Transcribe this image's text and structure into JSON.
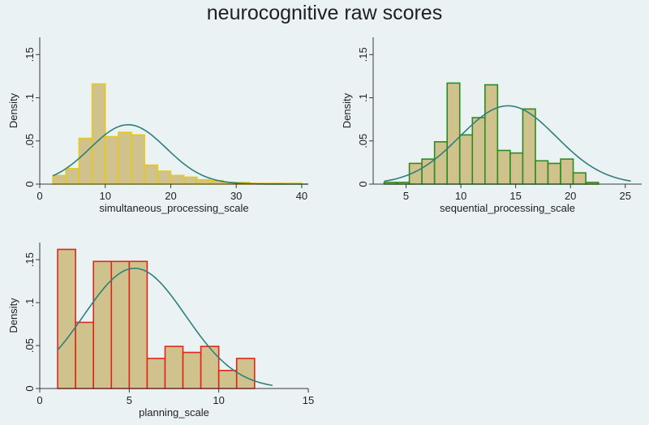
{
  "title": "neurocognitive raw scores",
  "chart_data": [
    {
      "type": "bar",
      "subtype": "histogram-with-normal-density-curve",
      "xlabel": "simultaneous_processing_scale",
      "ylabel": "Density",
      "xlim": [
        0,
        41
      ],
      "ylim": [
        0,
        0.17
      ],
      "xticks": [
        0,
        10,
        20,
        30,
        40
      ],
      "yticks": [
        0,
        0.05,
        0.1,
        0.15
      ],
      "xtick_labels": [
        "0",
        "10",
        "20",
        "30",
        "40"
      ],
      "ytick_labels": [
        "0",
        ".05",
        ".1",
        ".15"
      ],
      "bin_width": 2,
      "bins": [
        {
          "x0": 2,
          "x1": 4,
          "density": 0.01
        },
        {
          "x0": 4,
          "x1": 6,
          "density": 0.018
        },
        {
          "x0": 6,
          "x1": 8,
          "density": 0.053
        },
        {
          "x0": 8,
          "x1": 10,
          "density": 0.116
        },
        {
          "x0": 10,
          "x1": 12,
          "density": 0.055
        },
        {
          "x0": 12,
          "x1": 14,
          "density": 0.06
        },
        {
          "x0": 14,
          "x1": 16,
          "density": 0.057
        },
        {
          "x0": 16,
          "x1": 18,
          "density": 0.022
        },
        {
          "x0": 18,
          "x1": 20,
          "density": 0.015
        },
        {
          "x0": 20,
          "x1": 22,
          "density": 0.01
        },
        {
          "x0": 22,
          "x1": 24,
          "density": 0.008
        },
        {
          "x0": 24,
          "x1": 26,
          "density": 0.005
        },
        {
          "x0": 26,
          "x1": 28,
          "density": 0.004
        },
        {
          "x0": 28,
          "x1": 30,
          "density": 0.002
        },
        {
          "x0": 30,
          "x1": 32,
          "density": 0.002
        },
        {
          "x0": 32,
          "x1": 34,
          "density": 0.001
        },
        {
          "x0": 34,
          "x1": 36,
          "density": 0.001
        },
        {
          "x0": 36,
          "x1": 38,
          "density": 0.001
        },
        {
          "x0": 38,
          "x1": 40,
          "density": 0.001
        }
      ],
      "normal_curve": {
        "mean": 13.5,
        "sd": 5.8,
        "range": [
          2,
          41
        ]
      },
      "colors": {
        "bar_fill": "#cfc28c",
        "bar_edge": "#e8c81c",
        "curve": "#2f7f7a"
      }
    },
    {
      "type": "bar",
      "subtype": "histogram-with-normal-density-curve",
      "xlabel": "sequential_processing_scale",
      "ylabel": "Density",
      "xlim": [
        2,
        26.5
      ],
      "ylim": [
        0,
        0.17
      ],
      "xticks": [
        5,
        10,
        15,
        20,
        25
      ],
      "yticks": [
        0,
        0.05,
        0.1,
        0.15
      ],
      "xtick_labels": [
        "5",
        "10",
        "15",
        "20",
        "25"
      ],
      "ytick_labels": [
        "0",
        ".05",
        ".1",
        ".15"
      ],
      "bin_width": 1.15,
      "bins": [
        {
          "x0": 3.0,
          "x1": 4.15,
          "density": 0.002
        },
        {
          "x0": 4.15,
          "x1": 5.3,
          "density": 0.002
        },
        {
          "x0": 5.3,
          "x1": 6.45,
          "density": 0.024
        },
        {
          "x0": 6.45,
          "x1": 7.6,
          "density": 0.029
        },
        {
          "x0": 7.6,
          "x1": 8.75,
          "density": 0.049
        },
        {
          "x0": 8.75,
          "x1": 9.9,
          "density": 0.117
        },
        {
          "x0": 9.9,
          "x1": 11.05,
          "density": 0.057
        },
        {
          "x0": 11.05,
          "x1": 12.2,
          "density": 0.077
        },
        {
          "x0": 12.2,
          "x1": 13.35,
          "density": 0.115
        },
        {
          "x0": 13.35,
          "x1": 14.5,
          "density": 0.039
        },
        {
          "x0": 14.5,
          "x1": 15.65,
          "density": 0.036
        },
        {
          "x0": 15.65,
          "x1": 16.8,
          "density": 0.087
        },
        {
          "x0": 16.8,
          "x1": 17.95,
          "density": 0.027
        },
        {
          "x0": 17.95,
          "x1": 19.1,
          "density": 0.024
        },
        {
          "x0": 19.1,
          "x1": 20.25,
          "density": 0.029
        },
        {
          "x0": 20.25,
          "x1": 21.4,
          "density": 0.013
        },
        {
          "x0": 21.4,
          "x1": 22.55,
          "density": 0.002
        }
      ],
      "normal_curve": {
        "mean": 14.3,
        "sd": 4.4,
        "range": [
          3,
          25.5
        ]
      },
      "colors": {
        "bar_fill": "#cfc28c",
        "bar_edge": "#2e8b22",
        "curve": "#2f7f7a"
      }
    },
    {
      "type": "bar",
      "subtype": "histogram-with-normal-density-curve",
      "xlabel": "planning_scale",
      "ylabel": "Density",
      "xlim": [
        0,
        15
      ],
      "ylim": [
        0,
        0.17
      ],
      "xticks": [
        0,
        5,
        10,
        15
      ],
      "yticks": [
        0,
        0.05,
        0.1,
        0.15
      ],
      "xtick_labels": [
        "0",
        "5",
        "10",
        "15"
      ],
      "ytick_labels": [
        "0",
        ".05",
        ".1",
        ".15"
      ],
      "bin_width": 1,
      "bins": [
        {
          "x0": 1,
          "x1": 2,
          "density": 0.162
        },
        {
          "x0": 2,
          "x1": 3,
          "density": 0.077
        },
        {
          "x0": 3,
          "x1": 4,
          "density": 0.148
        },
        {
          "x0": 4,
          "x1": 5,
          "density": 0.148
        },
        {
          "x0": 5,
          "x1": 6,
          "density": 0.148
        },
        {
          "x0": 6,
          "x1": 7,
          "density": 0.035
        },
        {
          "x0": 7,
          "x1": 8,
          "density": 0.049
        },
        {
          "x0": 8,
          "x1": 9,
          "density": 0.042
        },
        {
          "x0": 9,
          "x1": 10,
          "density": 0.049
        },
        {
          "x0": 10,
          "x1": 11,
          "density": 0.021
        },
        {
          "x0": 11,
          "x1": 12,
          "density": 0.035
        }
      ],
      "normal_curve": {
        "mean": 5.3,
        "sd": 2.85,
        "range": [
          1,
          13
        ]
      },
      "colors": {
        "bar_fill": "#cfc28c",
        "bar_edge": "#e0261c",
        "curve": "#2f7f7a"
      }
    }
  ]
}
